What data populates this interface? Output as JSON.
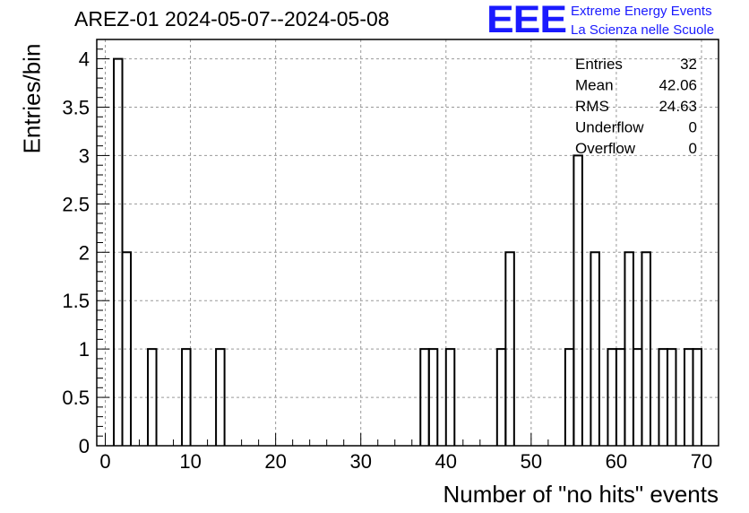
{
  "chart_data": {
    "type": "bar",
    "title": "AREZ-01 2024-05-07--2024-05-08",
    "xlabel": "Number of \"no hits\" events",
    "ylabel": "Entries/bin",
    "xlim": [
      -1,
      72
    ],
    "ylim": [
      0,
      4.2
    ],
    "x_ticks": [
      "0",
      "10",
      "20",
      "30",
      "40",
      "50",
      "60",
      "70"
    ],
    "y_ticks": [
      "0",
      "0.5",
      "1",
      "1.5",
      "2",
      "2.5",
      "3",
      "3.5",
      "4"
    ],
    "bin_width": 1,
    "bins": [
      {
        "x": 1.5,
        "value": 4
      },
      {
        "x": 2.5,
        "value": 2
      },
      {
        "x": 5.5,
        "value": 1
      },
      {
        "x": 9.5,
        "value": 1
      },
      {
        "x": 13.5,
        "value": 1
      },
      {
        "x": 37.5,
        "value": 1
      },
      {
        "x": 38.5,
        "value": 1
      },
      {
        "x": 40.5,
        "value": 1
      },
      {
        "x": 46.5,
        "value": 1
      },
      {
        "x": 47.5,
        "value": 2
      },
      {
        "x": 54.5,
        "value": 1
      },
      {
        "x": 55.5,
        "value": 3
      },
      {
        "x": 57.5,
        "value": 2
      },
      {
        "x": 59.5,
        "value": 1
      },
      {
        "x": 60.5,
        "value": 1
      },
      {
        "x": 61.5,
        "value": 2
      },
      {
        "x": 62.5,
        "value": 1
      },
      {
        "x": 63.5,
        "value": 2
      },
      {
        "x": 65.5,
        "value": 1
      },
      {
        "x": 66.5,
        "value": 1
      },
      {
        "x": 68.5,
        "value": 1
      },
      {
        "x": 69.5,
        "value": 1
      }
    ],
    "grid": true,
    "stats": [
      {
        "label": "Entries",
        "value": "32"
      },
      {
        "label": "Mean",
        "value": "42.06"
      },
      {
        "label": "RMS",
        "value": "24.63"
      },
      {
        "label": "Underflow",
        "value": "0"
      },
      {
        "label": "Overflow",
        "value": "0"
      }
    ],
    "line_color": "#000000",
    "grid_color": "#999999"
  },
  "logo": {
    "text": "EEE",
    "line1": "Extreme Energy Events",
    "line2": "La Scienza nelle Scuole",
    "color": "#1a1aff"
  }
}
